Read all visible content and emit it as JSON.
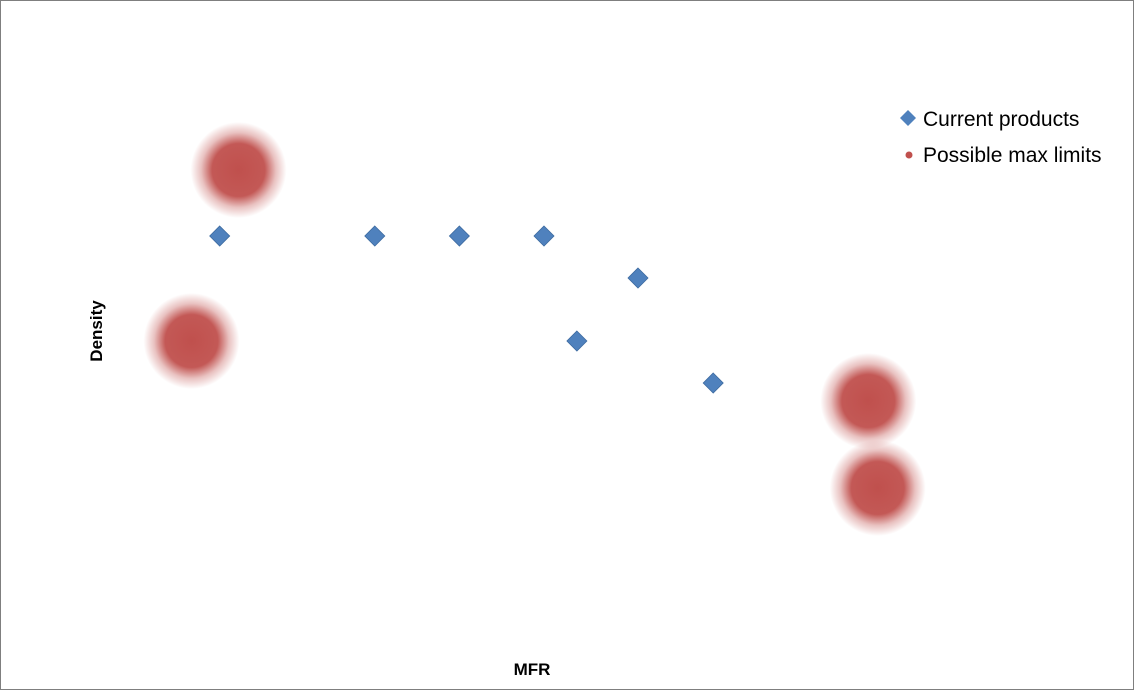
{
  "chart_data": {
    "type": "scatter",
    "title": "",
    "xlabel": "MFR",
    "ylabel": "Density",
    "xlim": [
      0,
      100
    ],
    "ylim": [
      0,
      100
    ],
    "grid": false,
    "axis_ticks_visible": false,
    "legend_position": "top-right",
    "series": [
      {
        "name": "Current products",
        "marker": "diamond",
        "color": "#4f81bd",
        "points": [
          {
            "x": 10.5,
            "y": 67.5
          },
          {
            "x": 27.0,
            "y": 67.5
          },
          {
            "x": 36.0,
            "y": 67.5
          },
          {
            "x": 45.0,
            "y": 67.5
          },
          {
            "x": 55.0,
            "y": 60.5
          },
          {
            "x": 48.5,
            "y": 50.0
          },
          {
            "x": 63.0,
            "y": 43.0
          }
        ]
      },
      {
        "name": "Possible max limits",
        "marker": "glow-circle",
        "color": "#c0504d",
        "points": [
          {
            "x": 12.5,
            "y": 78.5
          },
          {
            "x": 7.5,
            "y": 50.0
          },
          {
            "x": 79.5,
            "y": 40.0
          },
          {
            "x": 80.5,
            "y": 25.5
          }
        ]
      }
    ]
  }
}
